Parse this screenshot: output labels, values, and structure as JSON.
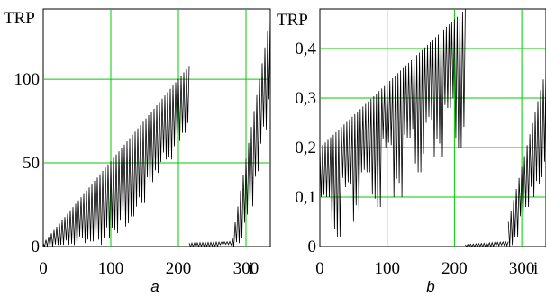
{
  "chart_data": [
    {
      "type": "line",
      "panel_label": "a",
      "ylabel": "TRP",
      "xlabel": "i",
      "xlim": [
        0,
        336
      ],
      "ylim": [
        0,
        142
      ],
      "x_ticks": [
        0,
        100,
        200,
        300
      ],
      "x_tick_labels": [
        "0",
        "100",
        "200",
        "300"
      ],
      "y_ticks": [
        0,
        50,
        100
      ],
      "y_tick_labels": [
        "0",
        "50",
        "100"
      ],
      "grid": true,
      "grid_color": "#00cc00",
      "line_color": "#000000",
      "segments": [
        {
          "x_start": 0,
          "x_end": 216,
          "peak_start": 2,
          "peak_end": 108,
          "valleys": [
            0,
            0,
            1,
            0,
            2,
            3,
            1,
            5,
            8,
            12,
            18,
            26,
            35,
            44,
            52,
            60,
            68
          ]
        },
        {
          "x_start": 216,
          "x_end": 280,
          "peak_start": 2,
          "peak_end": 3,
          "valleys": [
            0,
            0,
            1
          ]
        },
        {
          "x_start": 280,
          "x_end": 336,
          "peak_start": 5,
          "peak_end": 138,
          "valleys": [
            0,
            2,
            5,
            10,
            16,
            24,
            34,
            45,
            58,
            70,
            80
          ]
        }
      ]
    },
    {
      "type": "line",
      "panel_label": "b",
      "ylabel": "TRP",
      "xlabel": "i",
      "xlim": [
        0,
        336
      ],
      "ylim": [
        0,
        0.48
      ],
      "x_ticks": [
        0,
        100,
        200,
        300
      ],
      "x_tick_labels": [
        "0",
        "100",
        "200",
        "300"
      ],
      "y_ticks": [
        0,
        0.1,
        0.2,
        0.3,
        0.4
      ],
      "y_tick_labels": [
        "0",
        "0,1",
        "0,2",
        "0,3",
        "0,4"
      ],
      "grid": true,
      "grid_color": "#00cc00",
      "line_color": "#000000",
      "segments": [
        {
          "x_start": 0,
          "x_end": 216,
          "peak_start": 0.2,
          "peak_end": 0.48,
          "valleys": [
            0.1,
            0.02,
            0.12,
            0.05,
            0.15,
            0.08,
            0.2,
            0.1,
            0.22,
            0.15,
            0.25,
            0.18,
            0.28,
            0.2
          ]
        },
        {
          "x_start": 216,
          "x_end": 280,
          "peak_start": 0.004,
          "peak_end": 0.01,
          "valleys": [
            0,
            0,
            0.002
          ]
        },
        {
          "x_start": 280,
          "x_end": 336,
          "peak_start": 0.05,
          "peak_end": 0.36,
          "valleys": [
            0,
            0.02,
            0.05,
            0.08,
            0.1,
            0.12,
            0.14
          ]
        }
      ]
    }
  ]
}
